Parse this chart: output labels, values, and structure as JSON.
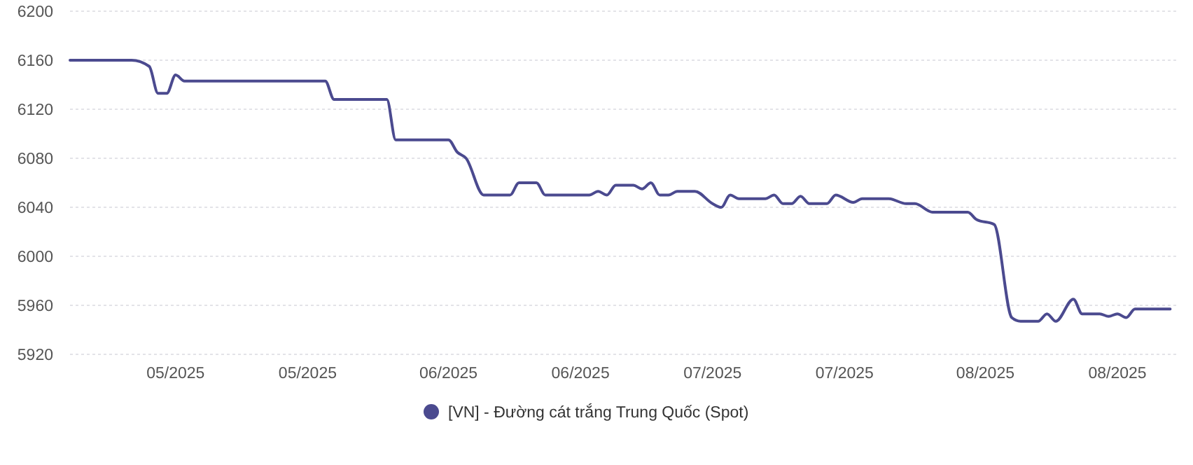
{
  "chart_data": {
    "type": "line",
    "x": [
      "2025-04-19",
      "2025-04-26",
      "2025-04-28",
      "2025-04-29",
      "2025-04-30",
      "2025-05-01",
      "2025-05-02",
      "2025-05-18",
      "2025-05-19",
      "2025-05-25",
      "2025-05-26",
      "2025-06-01",
      "2025-06-02",
      "2025-06-03",
      "2025-06-05",
      "2025-06-08",
      "2025-06-09",
      "2025-06-11",
      "2025-06-12",
      "2025-06-17",
      "2025-06-18",
      "2025-06-19",
      "2025-06-20",
      "2025-06-22",
      "2025-06-23",
      "2025-06-24",
      "2025-06-25",
      "2025-06-26",
      "2025-06-27",
      "2025-06-29",
      "2025-07-01",
      "2025-07-02",
      "2025-07-03",
      "2025-07-04",
      "2025-07-07",
      "2025-07-08",
      "2025-07-09",
      "2025-07-10",
      "2025-07-11",
      "2025-07-12",
      "2025-07-14",
      "2025-07-15",
      "2025-07-17",
      "2025-07-18",
      "2025-07-21",
      "2025-07-23",
      "2025-07-24",
      "2025-07-26",
      "2025-07-30",
      "2025-07-31",
      "2025-08-02",
      "2025-08-04",
      "2025-08-05",
      "2025-08-07",
      "2025-08-08",
      "2025-08-09",
      "2025-08-11",
      "2025-08-12",
      "2025-08-14",
      "2025-08-15",
      "2025-08-16",
      "2025-08-17",
      "2025-08-18",
      "2025-08-22"
    ],
    "series": [
      {
        "name": "[VN] - Đường cát trắng Trung Quốc (Spot)",
        "color": "#4b4a8f",
        "values": [
          6160,
          6160,
          6155,
          6133,
          6133,
          6148,
          6143,
          6143,
          6128,
          6128,
          6095,
          6095,
          6085,
          6080,
          6050,
          6050,
          6060,
          6060,
          6050,
          6050,
          6053,
          6050,
          6058,
          6058,
          6055,
          6060,
          6050,
          6050,
          6053,
          6053,
          6043,
          6040,
          6050,
          6047,
          6047,
          6050,
          6043,
          6043,
          6049,
          6043,
          6043,
          6050,
          6044,
          6047,
          6047,
          6043,
          6043,
          6036,
          6036,
          6030,
          6026,
          5950,
          5947,
          5947,
          5953,
          5947,
          5965,
          5953,
          5953,
          5951,
          5953,
          5950,
          5957,
          5957
        ]
      }
    ],
    "xlim": [
      "2025-04-19",
      "2025-08-23"
    ],
    "xticks": [
      {
        "value": "2025-05-01",
        "label": "05/2025"
      },
      {
        "value": "2025-05-16",
        "label": "05/2025"
      },
      {
        "value": "2025-06-01",
        "label": "06/2025"
      },
      {
        "value": "2025-06-16",
        "label": "06/2025"
      },
      {
        "value": "2025-07-01",
        "label": "07/2025"
      },
      {
        "value": "2025-07-16",
        "label": "07/2025"
      },
      {
        "value": "2025-08-01",
        "label": "08/2025"
      },
      {
        "value": "2025-08-16",
        "label": "08/2025"
      }
    ],
    "ylim": [
      5920,
      6200
    ],
    "yticks": [
      5920,
      5960,
      6000,
      6040,
      6080,
      6120,
      6160,
      6200
    ],
    "grid": "y",
    "legend": "bottom",
    "marker": "none",
    "line_style": "solid"
  }
}
